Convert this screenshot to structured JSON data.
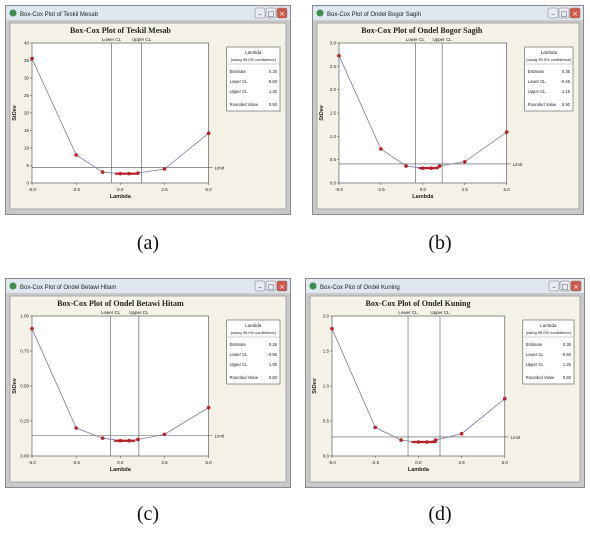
{
  "panels": [
    {
      "id": "a",
      "caption": "(a)",
      "window_title": "Box-Cox Plot of Teskil Mesab",
      "plot_title": "Box-Cox Plot of Teskil Mesab",
      "xlabel": "Lambda",
      "ylabel": "StDev",
      "ci_labels": [
        "Lower CL",
        "Upper CL"
      ],
      "limit_label": "Limit",
      "xticks": [
        "-5.0",
        "-2.5",
        "0.0",
        "2.5",
        "5.0"
      ],
      "yticks": [
        "40",
        "35",
        "30",
        "25",
        "20",
        "15",
        "10",
        "5",
        "0"
      ],
      "legend": {
        "title": "Lambda",
        "subtitle": "(using 95.0% confidence)",
        "rows": [
          {
            "label": "Estimate",
            "value": "0.30"
          },
          {
            "label": "Lower CL",
            "value": "-0.50"
          },
          {
            "label": "Upper CL",
            "value": "1.20"
          },
          {
            "label": "Rounded Value",
            "value": "0.50"
          }
        ]
      }
    },
    {
      "id": "b",
      "caption": "(b)",
      "window_title": "Box-Cox Plot of Ondel Bogor Sagih",
      "plot_title": "Box-Cox Plot of Ondel Bogor Sagih",
      "xlabel": "Lambda",
      "ylabel": "StDev",
      "ci_labels": [
        "Lower CL",
        "Upper CL"
      ],
      "limit_label": "Limit",
      "xticks": [
        "-5.0",
        "-2.5",
        "0.0",
        "2.5",
        "5.0"
      ],
      "yticks": [
        "3.0",
        "2.5",
        "2.0",
        "1.5",
        "1.0",
        "0.5",
        "0.0"
      ],
      "legend": {
        "title": "Lambda",
        "subtitle": "(using 95.0% confidence)",
        "rows": [
          {
            "label": "Estimate",
            "value": "0.35"
          },
          {
            "label": "Lower CL",
            "value": "-0.45"
          },
          {
            "label": "Upper CL",
            "value": "1.15"
          },
          {
            "label": "Rounded Value",
            "value": "0.50"
          }
        ]
      }
    },
    {
      "id": "c",
      "caption": "(c)",
      "window_title": "Box-Cox Plot of Ondel Betawi Hitam",
      "plot_title": "Box-Cox Plot of Ondel Betawi Hitam",
      "xlabel": "Lambda",
      "ylabel": "StDev",
      "ci_labels": [
        "Lower CL",
        "Upper CL"
      ],
      "limit_label": "Limit",
      "xticks": [
        "-5.0",
        "-2.5",
        "0.0",
        "2.5",
        "5.0"
      ],
      "yticks": [
        "1.00",
        "0.75",
        "0.50",
        "0.25",
        "0.00"
      ],
      "legend": {
        "title": "Lambda",
        "subtitle": "(using 95.0% confidence)",
        "rows": [
          {
            "label": "Estimate",
            "value": "0.25"
          },
          {
            "label": "Lower CL",
            "value": "-0.55"
          },
          {
            "label": "Upper CL",
            "value": "1.05"
          },
          {
            "label": "Rounded Value",
            "value": "0.50"
          }
        ]
      }
    },
    {
      "id": "d",
      "caption": "(d)",
      "window_title": "Box-Cox Plot of Ondel Kuning",
      "plot_title": "Box-Cox Plot of Ondel Kuning",
      "xlabel": "Lambda",
      "ylabel": "StDev",
      "ci_labels": [
        "Lower CL",
        "Upper CL"
      ],
      "limit_label": "Limit",
      "xticks": [
        "-5.0",
        "-2.5",
        "0.0",
        "2.5",
        "5.0"
      ],
      "yticks": [
        "2.0",
        "1.5",
        "1.0",
        "0.5",
        "0.0"
      ],
      "legend": {
        "title": "Lambda",
        "subtitle": "(using 95.0% confidence)",
        "rows": [
          {
            "label": "Estimate",
            "value": "0.30"
          },
          {
            "label": "Lower CL",
            "value": "-0.60"
          },
          {
            "label": "Upper CL",
            "value": "1.25"
          },
          {
            "label": "Rounded Value",
            "value": "0.50"
          }
        ]
      }
    }
  ],
  "colors": {
    "window_frame": "#c9c9c9",
    "title_bar": "#dfe7f0",
    "plot_bg": "#f4f2e6",
    "curve": "#7c7c9c",
    "points": "#b8202a",
    "close_button": "#d2574a"
  },
  "chart_data": [
    {
      "type": "line",
      "panel": "a",
      "xlim": [
        -5,
        5
      ],
      "ylim": [
        0,
        45
      ],
      "x": [
        -5.0,
        -2.5,
        -1.0,
        0.0,
        0.5,
        1.0,
        2.5,
        5.0
      ],
      "y": [
        40.0,
        9.0,
        3.5,
        3.0,
        3.0,
        3.2,
        4.5,
        16.0
      ],
      "limit_y": 5.0,
      "ci": [
        -0.5,
        1.2
      ],
      "estimate": 0.3
    },
    {
      "type": "line",
      "panel": "b",
      "xlim": [
        -5,
        5
      ],
      "ylim": [
        0,
        3.3
      ],
      "x": [
        -5.0,
        -2.5,
        -1.0,
        0.0,
        0.5,
        1.0,
        2.5,
        5.0
      ],
      "y": [
        3.0,
        0.8,
        0.4,
        0.35,
        0.35,
        0.4,
        0.5,
        1.2
      ],
      "limit_y": 0.45,
      "ci": [
        -0.45,
        1.15
      ],
      "estimate": 0.35
    },
    {
      "type": "line",
      "panel": "c",
      "xlim": [
        -5,
        5
      ],
      "ylim": [
        0,
        1.1
      ],
      "x": [
        -5.0,
        -2.5,
        -1.0,
        0.0,
        0.5,
        1.0,
        2.5,
        5.0
      ],
      "y": [
        1.0,
        0.22,
        0.14,
        0.12,
        0.12,
        0.13,
        0.17,
        0.38
      ],
      "limit_y": 0.16,
      "ci": [
        -0.55,
        1.05
      ],
      "estimate": 0.25
    },
    {
      "type": "line",
      "panel": "d",
      "xlim": [
        -5,
        5
      ],
      "ylim": [
        0,
        2.2
      ],
      "x": [
        -5.0,
        -2.5,
        -1.0,
        0.0,
        0.5,
        1.0,
        2.5,
        5.0
      ],
      "y": [
        2.0,
        0.45,
        0.25,
        0.22,
        0.22,
        0.25,
        0.35,
        0.9
      ],
      "limit_y": 0.3,
      "ci": [
        -0.6,
        1.25
      ],
      "estimate": 0.3
    }
  ]
}
